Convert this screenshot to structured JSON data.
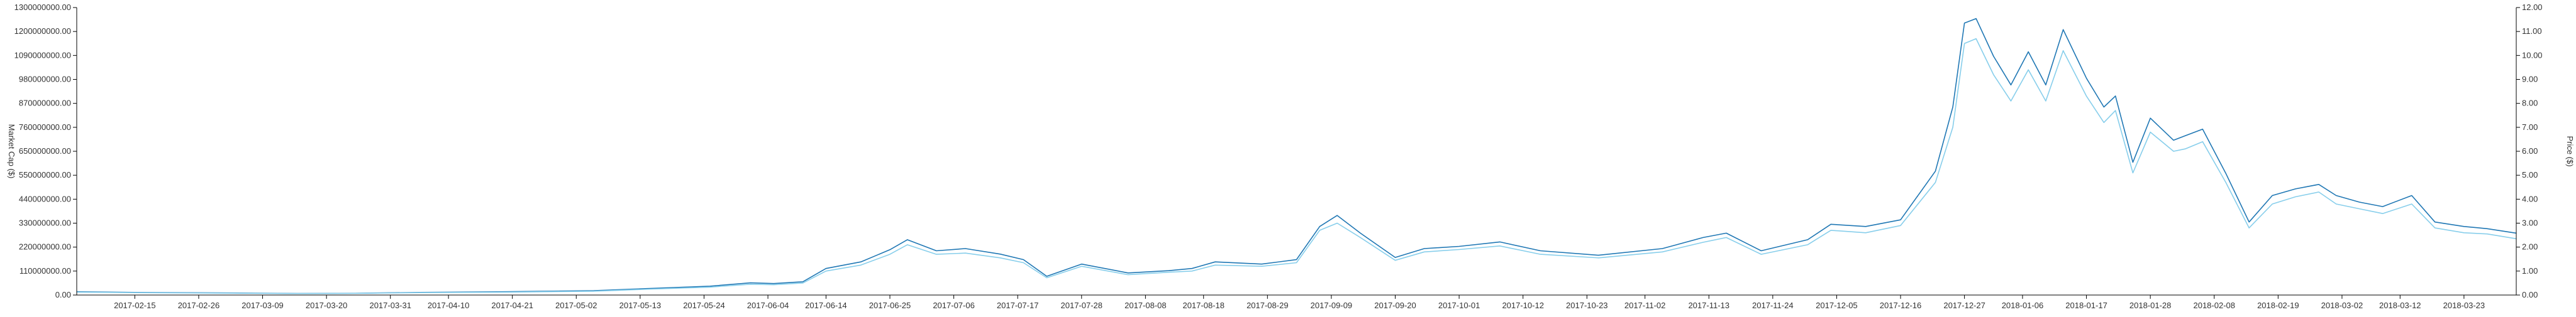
{
  "chart_data": {
    "type": "line",
    "title": "",
    "xlabel": "",
    "y_left_label": "Market Cap ($)",
    "y_right_label": "Price ($)",
    "y_left_ticks": [
      "0.00",
      "110000000.00",
      "220000000.00",
      "330000000.00",
      "440000000.00",
      "550000000.00",
      "650000000.00",
      "760000000.00",
      "870000000.00",
      "980000000.00",
      "1090000000.00",
      "1200000000.00",
      "1300000000.00"
    ],
    "y_right_ticks": [
      "0.00",
      "1.00",
      "2.00",
      "3.00",
      "4.00",
      "5.00",
      "6.00",
      "7.00",
      "8.00",
      "9.00",
      "10.00",
      "11.00",
      "12.00"
    ],
    "ylim_left": [
      0,
      1300000000
    ],
    "ylim_right": [
      0,
      12
    ],
    "x_ticks": [
      "2017-02-15",
      "2017-02-26",
      "2017-03-09",
      "2017-03-20",
      "2017-03-31",
      "2017-04-10",
      "2017-04-21",
      "2017-05-02",
      "2017-05-13",
      "2017-05-24",
      "2017-06-04",
      "2017-06-14",
      "2017-06-25",
      "2017-07-06",
      "2017-07-17",
      "2017-07-28",
      "2017-08-08",
      "2017-08-18",
      "2017-08-29",
      "2017-09-09",
      "2017-09-20",
      "2017-10-01",
      "2017-10-12",
      "2017-10-23",
      "2017-11-02",
      "2017-11-13",
      "2017-11-24",
      "2017-12-05",
      "2017-12-16",
      "2017-12-27",
      "2018-01-06",
      "2018-01-17",
      "2018-01-28",
      "2018-02-08",
      "2018-02-19",
      "2018-03-02",
      "2018-03-12",
      "2018-03-23"
    ],
    "x_range": [
      "2017-02-05",
      "2018-04-01"
    ],
    "grid": false,
    "legend": "none",
    "colors": {
      "market_cap": "#1f77b4",
      "price": "#87ceeb",
      "axis": "#000000"
    },
    "series": [
      {
        "axis": "left",
        "x": [
          "2017-02-05",
          "2017-02-15",
          "2017-03-01",
          "2017-03-15",
          "2017-03-25",
          "2017-04-05",
          "2017-04-20",
          "2017-05-05",
          "2017-05-15",
          "2017-05-25",
          "2017-06-01",
          "2017-06-05",
          "2017-06-10",
          "2017-06-14",
          "2017-06-20",
          "2017-06-25",
          "2017-06-28",
          "2017-07-03",
          "2017-07-08",
          "2017-07-14",
          "2017-07-18",
          "2017-07-22",
          "2017-07-28",
          "2017-08-05",
          "2017-08-12",
          "2017-08-16",
          "2017-08-20",
          "2017-08-28",
          "2017-09-03",
          "2017-09-07",
          "2017-09-10",
          "2017-09-14",
          "2017-09-20",
          "2017-09-25",
          "2017-10-01",
          "2017-10-08",
          "2017-10-15",
          "2017-10-25",
          "2017-11-05",
          "2017-11-12",
          "2017-11-16",
          "2017-11-22",
          "2017-11-30",
          "2017-12-04",
          "2017-12-10",
          "2017-12-16",
          "2017-12-22",
          "2017-12-25",
          "2017-12-27",
          "2017-12-29",
          "2018-01-01",
          "2018-01-04",
          "2018-01-07",
          "2018-01-10",
          "2018-01-13",
          "2018-01-17",
          "2018-01-20",
          "2018-01-22",
          "2018-01-25",
          "2018-01-28",
          "2018-02-01",
          "2018-02-03",
          "2018-02-06",
          "2018-02-10",
          "2018-02-14",
          "2018-02-18",
          "2018-02-22",
          "2018-02-26",
          "2018-03-01",
          "2018-03-05",
          "2018-03-09",
          "2018-03-14",
          "2018-03-18",
          "2018-03-23",
          "2018-03-27",
          "2018-04-01"
        ],
        "values": [
          15000000,
          12000000,
          10000000,
          7000000,
          8000000,
          12000000,
          15000000,
          20000000,
          30000000,
          40000000,
          55000000,
          52000000,
          60000000,
          120000000,
          150000000,
          205000000,
          250000000,
          200000000,
          210000000,
          185000000,
          160000000,
          85000000,
          140000000,
          100000000,
          110000000,
          120000000,
          150000000,
          140000000,
          160000000,
          310000000,
          360000000,
          280000000,
          170000000,
          210000000,
          220000000,
          240000000,
          200000000,
          180000000,
          210000000,
          260000000,
          280000000,
          200000000,
          250000000,
          320000000,
          310000000,
          340000000,
          560000000,
          850000000,
          1230000000,
          1250000000,
          1080000000,
          950000000,
          1100000000,
          950000000,
          1200000000,
          980000000,
          850000000,
          900000000,
          600000000,
          800000000,
          700000000,
          720000000,
          750000000,
          550000000,
          330000000,
          450000000,
          480000000,
          500000000,
          450000000,
          420000000,
          400000000,
          450000000,
          330000000,
          310000000,
          300000000,
          280000000
        ]
      },
      {
        "axis": "right",
        "x": [
          "2017-02-05",
          "2017-02-15",
          "2017-03-01",
          "2017-03-15",
          "2017-03-25",
          "2017-04-05",
          "2017-04-20",
          "2017-05-05",
          "2017-05-15",
          "2017-05-25",
          "2017-06-01",
          "2017-06-05",
          "2017-06-10",
          "2017-06-14",
          "2017-06-20",
          "2017-06-25",
          "2017-06-28",
          "2017-07-03",
          "2017-07-08",
          "2017-07-14",
          "2017-07-18",
          "2017-07-22",
          "2017-07-28",
          "2017-08-05",
          "2017-08-12",
          "2017-08-16",
          "2017-08-20",
          "2017-08-28",
          "2017-09-03",
          "2017-09-07",
          "2017-09-10",
          "2017-09-14",
          "2017-09-20",
          "2017-09-25",
          "2017-10-01",
          "2017-10-08",
          "2017-10-15",
          "2017-10-25",
          "2017-11-05",
          "2017-11-12",
          "2017-11-16",
          "2017-11-22",
          "2017-11-30",
          "2017-12-04",
          "2017-12-10",
          "2017-12-16",
          "2017-12-22",
          "2017-12-25",
          "2017-12-27",
          "2017-12-29",
          "2018-01-01",
          "2018-01-04",
          "2018-01-07",
          "2018-01-10",
          "2018-01-13",
          "2018-01-17",
          "2018-01-20",
          "2018-01-22",
          "2018-01-25",
          "2018-01-28",
          "2018-02-01",
          "2018-02-03",
          "2018-02-06",
          "2018-02-10",
          "2018-02-14",
          "2018-02-18",
          "2018-02-22",
          "2018-02-26",
          "2018-03-01",
          "2018-03-05",
          "2018-03-09",
          "2018-03-14",
          "2018-03-18",
          "2018-03-23",
          "2018-03-27",
          "2018-04-01"
        ],
        "values": [
          0.12,
          0.1,
          0.08,
          0.06,
          0.07,
          0.1,
          0.12,
          0.16,
          0.25,
          0.33,
          0.45,
          0.43,
          0.5,
          1.0,
          1.25,
          1.7,
          2.1,
          1.7,
          1.75,
          1.55,
          1.35,
          0.72,
          1.2,
          0.85,
          0.95,
          1.0,
          1.25,
          1.2,
          1.35,
          2.7,
          3.0,
          2.4,
          1.45,
          1.8,
          1.9,
          2.05,
          1.7,
          1.55,
          1.8,
          2.2,
          2.4,
          1.7,
          2.1,
          2.7,
          2.6,
          2.9,
          4.7,
          7.0,
          10.5,
          10.7,
          9.2,
          8.1,
          9.4,
          8.1,
          10.2,
          8.3,
          7.2,
          7.7,
          5.1,
          6.8,
          6.0,
          6.1,
          6.4,
          4.7,
          2.8,
          3.8,
          4.1,
          4.3,
          3.8,
          3.6,
          3.4,
          3.8,
          2.8,
          2.6,
          2.55,
          2.35
        ]
      }
    ]
  }
}
